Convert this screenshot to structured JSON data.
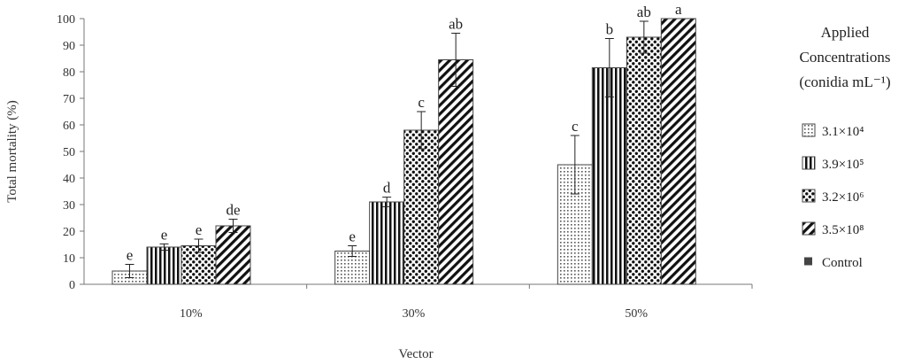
{
  "chart_data": {
    "type": "bar",
    "xlabel": "Vector",
    "ylabel": "Total mortality (%)",
    "ylim": [
      0,
      100
    ],
    "yticks": [
      0,
      10,
      20,
      30,
      40,
      50,
      60,
      70,
      80,
      90,
      100
    ],
    "categories": [
      "10%",
      "30%",
      "50%"
    ],
    "grid": false,
    "legend_position": "right",
    "legend_title": [
      "Applied",
      "Concentrations",
      "(conidia mL⁻¹)"
    ],
    "series": [
      {
        "name": "3.1×10⁴",
        "pattern": "dots-fine",
        "values": [
          5,
          12.5,
          45
        ],
        "errors": [
          2.5,
          2,
          11
        ],
        "letters": [
          "e",
          "e",
          "c"
        ]
      },
      {
        "name": "3.9×10⁵",
        "pattern": "vertical-lines",
        "values": [
          14,
          31,
          81.5
        ],
        "errors": [
          1.2,
          1.8,
          11
        ],
        "letters": [
          "e",
          "d",
          "b"
        ]
      },
      {
        "name": "3.2×10⁶",
        "pattern": "dots-large",
        "values": [
          14.5,
          58,
          93
        ],
        "errors": [
          2.5,
          7,
          6
        ],
        "letters": [
          "e",
          "c",
          "ab"
        ]
      },
      {
        "name": "3.5×10⁸",
        "pattern": "diagonal-lines",
        "values": [
          22,
          84.5,
          100
        ],
        "errors": [
          2.5,
          10,
          0
        ],
        "letters": [
          "de",
          "ab",
          "a"
        ]
      },
      {
        "name": "Control",
        "pattern": "solid-dark",
        "values": [
          0,
          0,
          0
        ],
        "errors": [
          0,
          0,
          0
        ],
        "letters": [
          "",
          "",
          ""
        ]
      }
    ]
  }
}
